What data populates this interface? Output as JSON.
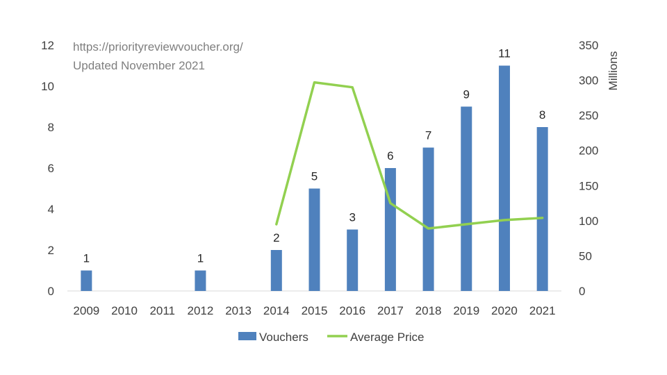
{
  "annotation": {
    "line1": "https://priorityreviewvoucher.org/",
    "line2": "Updated November 2021"
  },
  "chart_data": {
    "type": "bar",
    "categories": [
      "2009",
      "2010",
      "2011",
      "2012",
      "2013",
      "2014",
      "2015",
      "2016",
      "2017",
      "2018",
      "2019",
      "2020",
      "2021"
    ],
    "series": [
      {
        "name": "Vouchers",
        "type": "bar",
        "axis": "left",
        "color": "#4f81bd",
        "values": [
          1,
          0,
          0,
          1,
          0,
          2,
          5,
          3,
          6,
          7,
          9,
          11,
          8
        ],
        "data_labels": [
          "1",
          "",
          "",
          "1",
          "",
          "2",
          "5",
          "3",
          "6",
          "7",
          "9",
          "11",
          "8"
        ]
      },
      {
        "name": "Average Price",
        "type": "line",
        "axis": "right",
        "color": "#92d050",
        "values": [
          null,
          null,
          null,
          null,
          null,
          95,
          297,
          290,
          125,
          89,
          95,
          101,
          104
        ]
      }
    ],
    "y_left": {
      "min": 0,
      "max": 12,
      "ticks": [
        "0",
        "2",
        "4",
        "6",
        "8",
        "10",
        "12"
      ]
    },
    "y_right": {
      "min": 0,
      "max": 350,
      "label": "Millions",
      "ticks": [
        "0",
        "50",
        "100",
        "150",
        "200",
        "250",
        "300",
        "350"
      ]
    },
    "grid": false,
    "legend": {
      "position": "bottom",
      "entries": [
        "Vouchers",
        "Average Price"
      ]
    }
  }
}
